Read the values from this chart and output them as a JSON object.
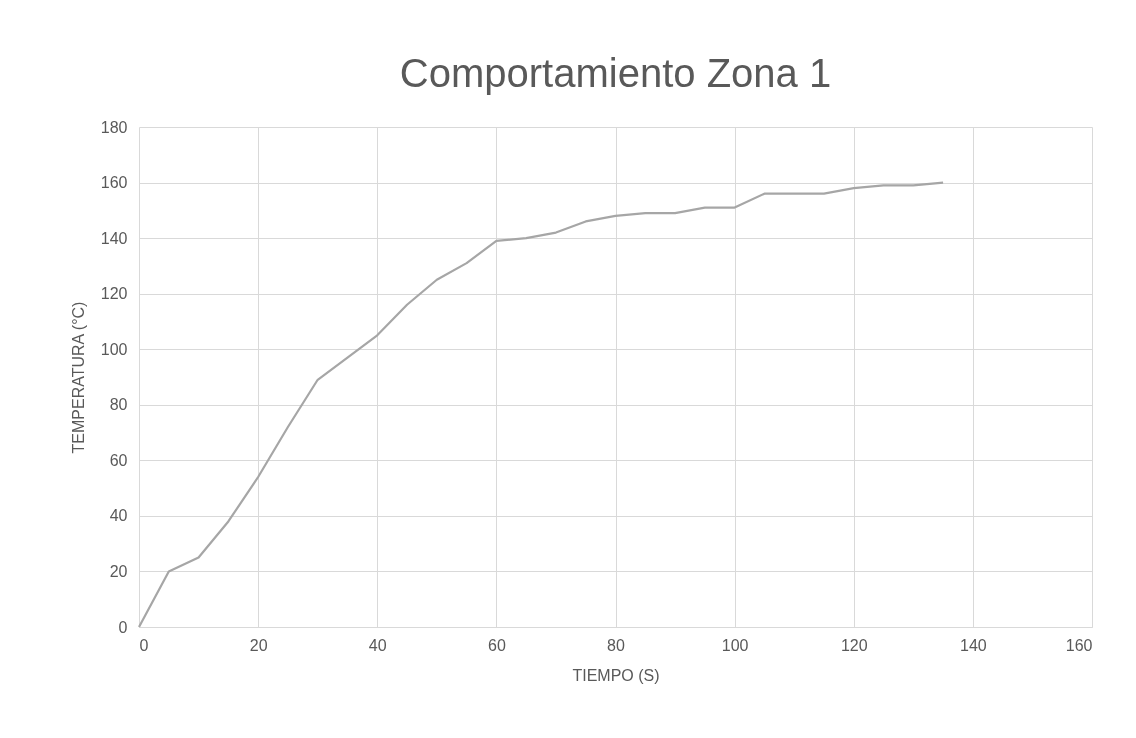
{
  "chart_data": {
    "type": "line",
    "title": "Comportamiento Zona 1",
    "xlabel": "TIEMPO (S)",
    "ylabel": "TEMPERATURA (°C)",
    "x": [
      0,
      5,
      10,
      15,
      20,
      25,
      30,
      35,
      40,
      45,
      50,
      55,
      60,
      65,
      70,
      75,
      80,
      85,
      90,
      95,
      100,
      105,
      110,
      115,
      120,
      125,
      130,
      135
    ],
    "series": [
      {
        "color": "#a6a6a6",
        "values": [
          0,
          20,
          25,
          38,
          54,
          72,
          89,
          97,
          105,
          116,
          125,
          131,
          139,
          140,
          142,
          146,
          148,
          149,
          149,
          151,
          151,
          156,
          156,
          156,
          158,
          159,
          159,
          160
        ]
      }
    ],
    "xlim": [
      0,
      160
    ],
    "xticks": [
      0,
      20,
      40,
      60,
      80,
      100,
      120,
      140,
      160
    ],
    "ylim": [
      0,
      180
    ],
    "yticks": [
      0,
      20,
      40,
      60,
      80,
      100,
      120,
      140,
      160,
      180
    ],
    "grid": true,
    "marker": "none",
    "line_style": "solid"
  }
}
